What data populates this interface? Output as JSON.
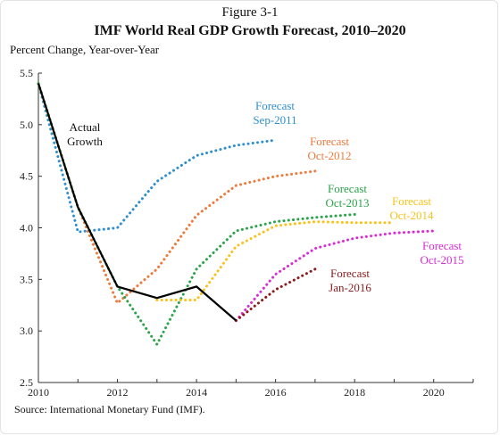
{
  "figure": {
    "label": "Figure 3-1",
    "title": "IMF World Real GDP Growth Forecast, 2010–2020",
    "ylabel": "Percent Change, Year-over-Year",
    "source": "Source: International Monetary Fund (IMF)."
  },
  "chart_data": {
    "type": "line",
    "title": "IMF World Real GDP Growth Forecast, 2010–2020",
    "xlabel": "",
    "ylabel": "Percent Change, Year-over-Year",
    "xlim": [
      2010,
      2021
    ],
    "ylim": [
      2.5,
      5.5
    ],
    "x_ticks": [
      2010,
      2012,
      2014,
      2016,
      2018,
      2020
    ],
    "y_ticks": [
      2.5,
      3.0,
      3.5,
      4.0,
      4.5,
      5.0,
      5.5
    ],
    "y_tick_labels": [
      "2.5",
      "3.0",
      "3.5",
      "4.0",
      "4.5",
      "5.0",
      "5.5"
    ],
    "grid": false,
    "legend": "none",
    "series": [
      {
        "name": "Actual Growth",
        "label_lines": [
          "Actual",
          "Growth"
        ],
        "style": "solid",
        "color": "#000000",
        "x": [
          2010,
          2011,
          2012,
          2013,
          2014,
          2015
        ],
        "y": [
          5.4,
          4.2,
          3.43,
          3.32,
          3.43,
          3.1
        ]
      },
      {
        "name": "Forecast Sep-2011",
        "label_lines": [
          "Forecast",
          "Sep-2011"
        ],
        "style": "dotted",
        "color": "#2e8fd0",
        "x": [
          2010,
          2011,
          2012,
          2013,
          2014,
          2015,
          2016
        ],
        "y": [
          5.4,
          3.96,
          4.0,
          4.45,
          4.7,
          4.8,
          4.85
        ]
      },
      {
        "name": "Forecast Oct-2012",
        "label_lines": [
          "Forecast",
          "Oct-2012"
        ],
        "style": "dotted",
        "color": "#ed7a3a",
        "x": [
          2010,
          2011,
          2012,
          2013,
          2014,
          2015,
          2016,
          2017
        ],
        "y": [
          5.4,
          4.2,
          3.27,
          3.6,
          4.12,
          4.41,
          4.5,
          4.55
        ]
      },
      {
        "name": "Forecast Oct-2013",
        "label_lines": [
          "Forecast",
          "Oct-2013"
        ],
        "style": "dotted",
        "color": "#2aa34a",
        "x": [
          2010,
          2011,
          2012,
          2013,
          2014,
          2015,
          2016,
          2017,
          2018
        ],
        "y": [
          5.4,
          4.2,
          3.43,
          2.87,
          3.6,
          3.97,
          4.06,
          4.1,
          4.13
        ]
      },
      {
        "name": "Forecast Oct-2014",
        "label_lines": [
          "Forecast",
          "Oct-2014"
        ],
        "style": "dotted",
        "color": "#f8c21c",
        "x": [
          2013,
          2014,
          2015,
          2016,
          2017,
          2018,
          2019
        ],
        "y": [
          3.3,
          3.3,
          3.82,
          4.02,
          4.06,
          4.05,
          4.05
        ]
      },
      {
        "name": "Forecast Oct-2015",
        "label_lines": [
          "Forecast",
          "Oct-2015"
        ],
        "style": "dotted",
        "color": "#d92bd4",
        "x": [
          2015,
          2016,
          2017,
          2018,
          2019,
          2020
        ],
        "y": [
          3.1,
          3.55,
          3.8,
          3.9,
          3.95,
          3.97
        ]
      },
      {
        "name": "Forecast Jan-2016",
        "label_lines": [
          "Forecast",
          "Jan-2016"
        ],
        "style": "dotted",
        "color": "#8c1a1a",
        "x": [
          2015,
          2016,
          2017
        ],
        "y": [
          3.1,
          3.4,
          3.6
        ]
      }
    ]
  }
}
